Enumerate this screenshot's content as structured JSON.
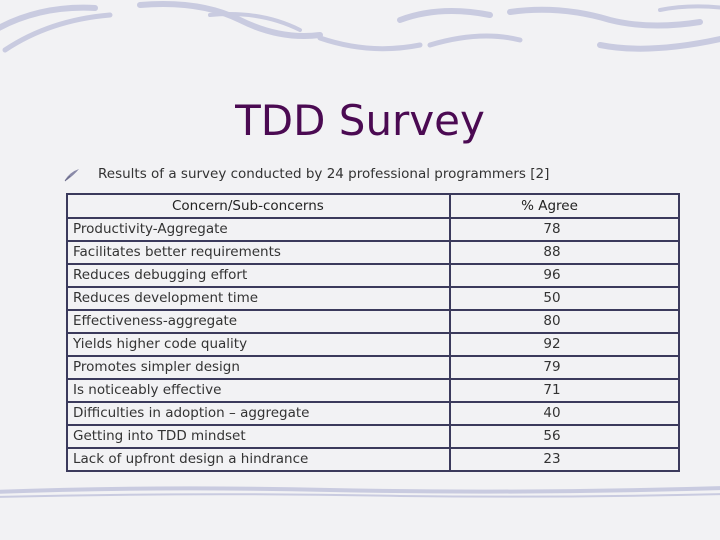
{
  "slide": {
    "title": "TDD Survey",
    "bullet": "Results of a survey conducted by 24 professional programmers [2]"
  },
  "table": {
    "headers": [
      "Concern/Sub-concerns",
      "% Agree"
    ],
    "rows": [
      {
        "label": "Productivity-Aggregate",
        "value": "78"
      },
      {
        "label": "Facilitates better requirements",
        "value": "88"
      },
      {
        "label": "Reduces debugging effort",
        "value": "96"
      },
      {
        "label": "Reduces development time",
        "value": "50"
      },
      {
        "label": "Effectiveness-aggregate",
        "value": "80"
      },
      {
        "label": "Yields higher code quality",
        "value": "92"
      },
      {
        "label": "Promotes simpler design",
        "value": "79"
      },
      {
        "label": "Is noticeably effective",
        "value": "71"
      },
      {
        "label": "Difficulties in adoption – aggregate",
        "value": "40"
      },
      {
        "label": "Getting into TDD mindset",
        "value": "56"
      },
      {
        "label": "Lack of upfront design a hindrance",
        "value": "23"
      }
    ]
  },
  "colors": {
    "title": "#4b0a52",
    "background": "#f2f2f4",
    "border": "#3b3a5c",
    "decoration": "#c9cbe0"
  },
  "icons": {
    "bullet": "quill-bullet-icon"
  }
}
